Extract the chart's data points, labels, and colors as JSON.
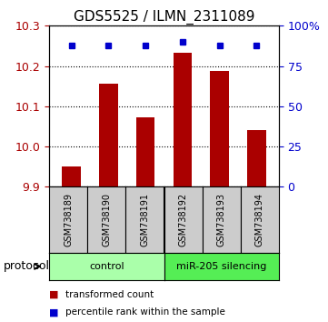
{
  "title": "GDS5525 / ILMN_2311089",
  "samples": [
    "GSM738189",
    "GSM738190",
    "GSM738191",
    "GSM738192",
    "GSM738193",
    "GSM738194"
  ],
  "bar_values": [
    9.951,
    10.157,
    10.072,
    10.232,
    10.188,
    10.04
  ],
  "percentile_values": [
    88,
    88,
    88,
    90,
    88,
    88
  ],
  "bar_color": "#aa0000",
  "dot_color": "#0000cc",
  "ylim_left": [
    9.9,
    10.3
  ],
  "ylim_right": [
    0,
    100
  ],
  "yticks_left": [
    9.9,
    10.0,
    10.1,
    10.2,
    10.3
  ],
  "yticks_right": [
    0,
    25,
    50,
    75,
    100
  ],
  "ytick_labels_right": [
    "0",
    "25",
    "50",
    "75",
    "100%"
  ],
  "groups": [
    {
      "label": "control",
      "indices": [
        0,
        1,
        2
      ],
      "color": "#aaffaa"
    },
    {
      "label": "miR-205 silencing",
      "indices": [
        3,
        4,
        5
      ],
      "color": "#55ee55"
    }
  ],
  "protocol_label": "protocol",
  "legend": [
    {
      "label": "transformed count",
      "color": "#aa0000"
    },
    {
      "label": "percentile rank within the sample",
      "color": "#0000cc"
    }
  ],
  "bar_width": 0.5,
  "background_color": "#ffffff",
  "sample_box_color": "#cccccc",
  "figsize": [
    3.61,
    3.54
  ],
  "dpi": 100
}
